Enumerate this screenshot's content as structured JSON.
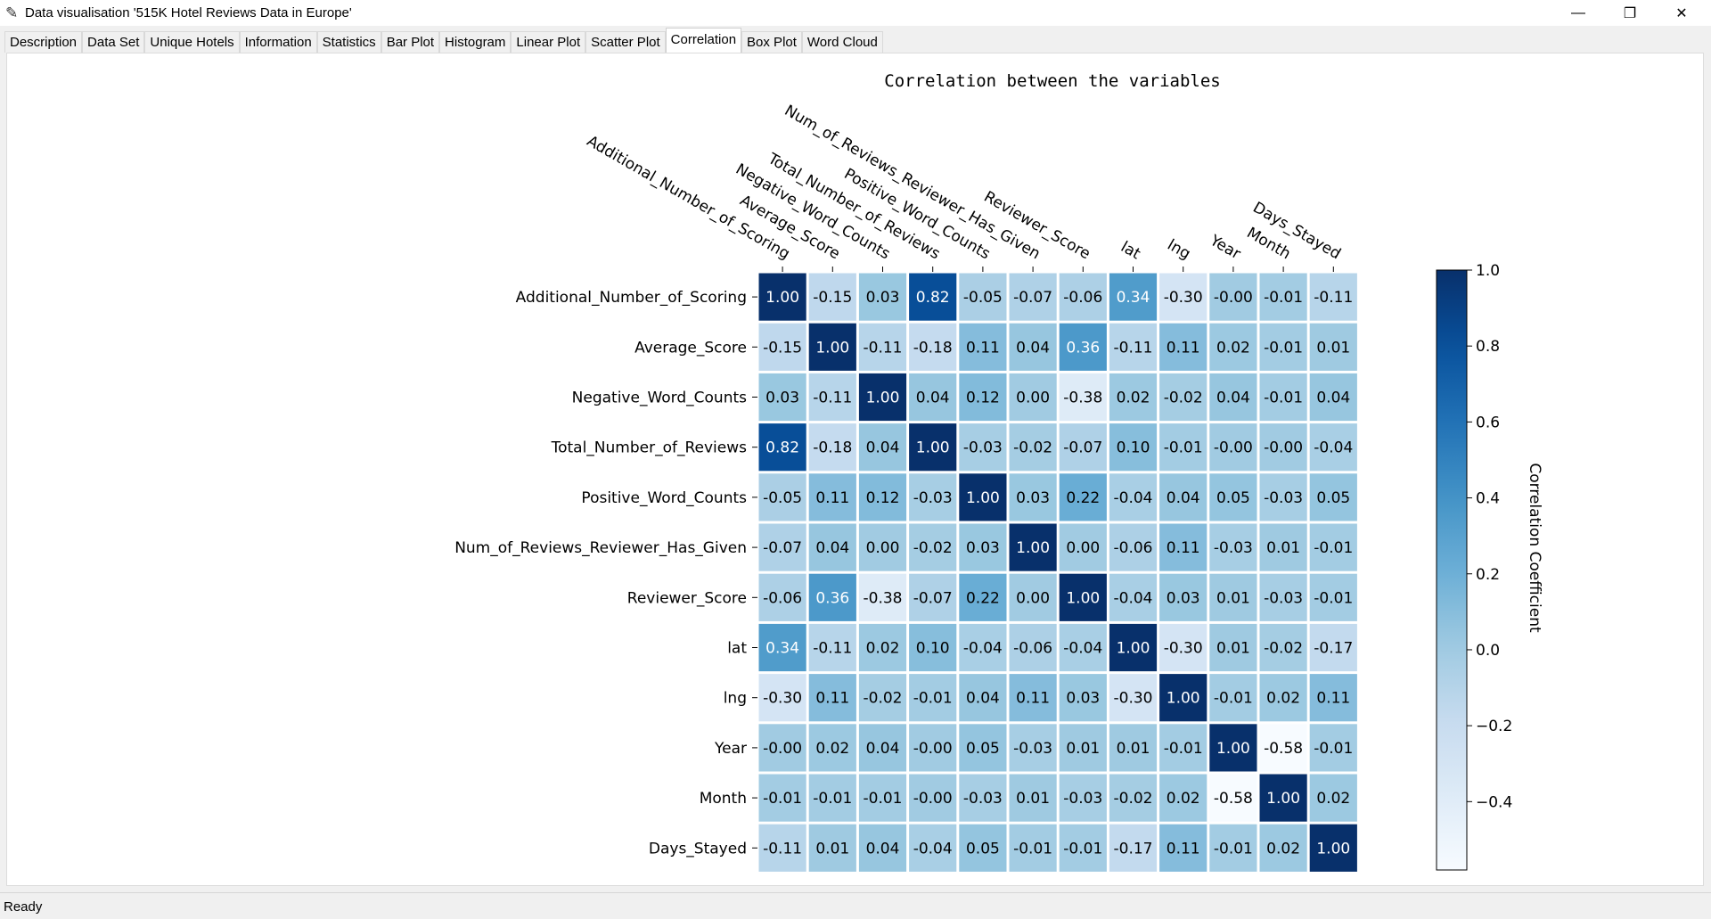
{
  "window": {
    "title": "Data visualisation '515K Hotel Reviews Data in Europe'",
    "icon": "feather-icon",
    "minimize_glyph": "—",
    "restore_glyph": "❐",
    "close_glyph": "✕"
  },
  "tabs": [
    {
      "label": "Description",
      "active": false
    },
    {
      "label": "Data Set",
      "active": false
    },
    {
      "label": "Unique Hotels",
      "active": false
    },
    {
      "label": "Information",
      "active": false
    },
    {
      "label": "Statistics",
      "active": false
    },
    {
      "label": "Bar Plot",
      "active": false
    },
    {
      "label": "Histogram",
      "active": false
    },
    {
      "label": "Linear Plot",
      "active": false
    },
    {
      "label": "Scatter Plot",
      "active": false
    },
    {
      "label": "Correlation",
      "active": true
    },
    {
      "label": "Box Plot",
      "active": false
    },
    {
      "label": "Word Cloud",
      "active": false
    }
  ],
  "status": {
    "text": "Ready"
  },
  "chart_data": {
    "type": "heatmap",
    "title": "Correlation between the variables",
    "variables": [
      "Additional_Number_of_Scoring",
      "Average_Score",
      "Negative_Word_Counts",
      "Total_Number_of_Reviews",
      "Positive_Word_Counts",
      "Num_of_Reviews_Reviewer_Has_Given",
      "Reviewer_Score",
      "lat",
      "lng",
      "Year",
      "Month",
      "Days_Stayed"
    ],
    "matrix": [
      [
        1.0,
        -0.15,
        0.03,
        0.82,
        -0.05,
        -0.07,
        -0.06,
        0.34,
        -0.3,
        -0.0,
        -0.01,
        -0.11
      ],
      [
        -0.15,
        1.0,
        -0.11,
        -0.18,
        0.11,
        0.04,
        0.36,
        -0.11,
        0.11,
        0.02,
        -0.01,
        0.01
      ],
      [
        0.03,
        -0.11,
        1.0,
        0.04,
        0.12,
        0.0,
        -0.38,
        0.02,
        -0.02,
        0.04,
        -0.01,
        0.04
      ],
      [
        0.82,
        -0.18,
        0.04,
        1.0,
        -0.03,
        -0.02,
        -0.07,
        0.1,
        -0.01,
        -0.0,
        -0.0,
        -0.04
      ],
      [
        -0.05,
        0.11,
        0.12,
        -0.03,
        1.0,
        0.03,
        0.22,
        -0.04,
        0.04,
        0.05,
        -0.03,
        0.05
      ],
      [
        -0.07,
        0.04,
        0.0,
        -0.02,
        0.03,
        1.0,
        0.0,
        -0.06,
        0.11,
        -0.03,
        0.01,
        -0.01
      ],
      [
        -0.06,
        0.36,
        -0.38,
        -0.07,
        0.22,
        0.0,
        1.0,
        -0.04,
        0.03,
        0.01,
        -0.03,
        -0.01
      ],
      [
        0.34,
        -0.11,
        0.02,
        0.1,
        -0.04,
        -0.06,
        -0.04,
        1.0,
        -0.3,
        0.01,
        -0.02,
        -0.17
      ],
      [
        -0.3,
        0.11,
        -0.02,
        -0.01,
        0.04,
        0.11,
        0.03,
        -0.3,
        1.0,
        -0.01,
        0.02,
        0.11
      ],
      [
        -0.0,
        0.02,
        0.04,
        -0.0,
        0.05,
        -0.03,
        0.01,
        0.01,
        -0.01,
        1.0,
        -0.58,
        -0.01
      ],
      [
        -0.01,
        -0.01,
        -0.01,
        -0.0,
        -0.03,
        0.01,
        -0.03,
        -0.02,
        0.02,
        -0.58,
        1.0,
        0.02
      ],
      [
        -0.11,
        0.01,
        0.04,
        -0.04,
        0.05,
        -0.01,
        -0.01,
        -0.17,
        0.11,
        -0.01,
        0.02,
        1.0
      ]
    ],
    "colormap": "Blues",
    "vmin": -0.58,
    "vmax": 1.0,
    "colorbar": {
      "label": "Correlation Coefficient",
      "ticks": [
        1.0,
        0.8,
        0.6,
        0.4,
        0.2,
        0.0,
        -0.2,
        -0.4
      ],
      "tick_labels": [
        "1.0",
        "0.8",
        "0.6",
        "0.4",
        "0.2",
        "0.0",
        "−0.2",
        "−0.4"
      ]
    },
    "annotation_format": "0.00",
    "gridlines": "white"
  }
}
